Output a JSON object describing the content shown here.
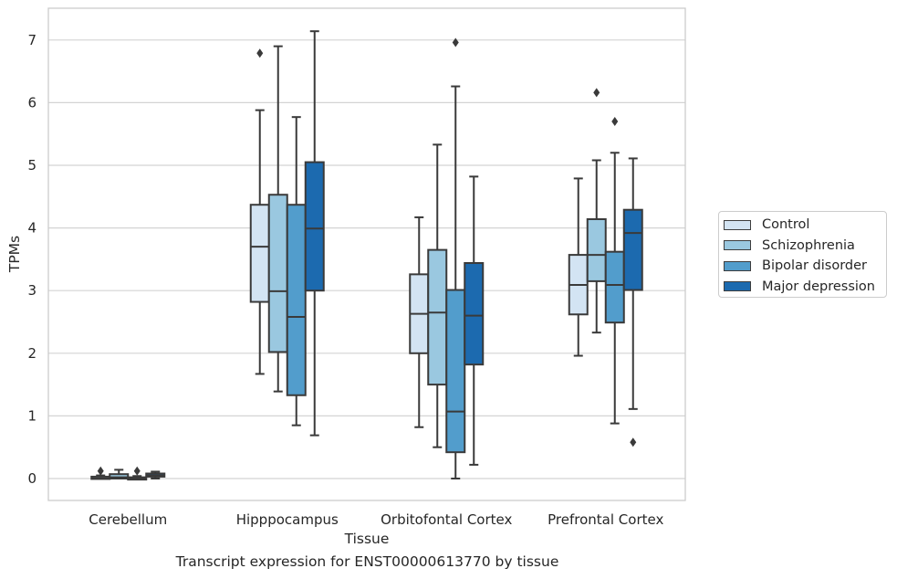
{
  "chart_data": {
    "type": "box",
    "xlabel": "Tissue",
    "ylabel": "TPMs",
    "caption": "Transcript expression for ENST00000613770 by tissue",
    "ylim": [
      -0.3,
      7.5
    ],
    "yticks": [
      "0",
      "1",
      "2",
      "3",
      "4",
      "5",
      "6",
      "7"
    ],
    "grid": "horizontal",
    "legend_position": "right",
    "categories": [
      "Cerebellum",
      "Hipppocampus",
      "Orbitofontal Cortex",
      "Prefrontal Cortex"
    ],
    "series": [
      {
        "name": "Control",
        "color": "#d3e4f3",
        "boxes": [
          {
            "whislo": 0.0,
            "q1": 0.0,
            "med": 0.0,
            "q3": 0.03,
            "whishi": 0.05,
            "fliers": [
              0.12
            ]
          },
          {
            "whislo": 1.67,
            "q1": 2.82,
            "med": 3.7,
            "q3": 4.37,
            "whishi": 5.88,
            "fliers": [
              6.79
            ]
          },
          {
            "whislo": 0.82,
            "q1": 2.0,
            "med": 2.63,
            "q3": 3.26,
            "whishi": 4.17,
            "fliers": []
          },
          {
            "whislo": 1.96,
            "q1": 2.62,
            "med": 3.09,
            "q3": 3.57,
            "whishi": 4.79,
            "fliers": []
          }
        ]
      },
      {
        "name": "Schizophrenia",
        "color": "#9ac8e0",
        "boxes": [
          {
            "whislo": 0.0,
            "q1": 0.0,
            "med": 0.02,
            "q3": 0.07,
            "whishi": 0.14,
            "fliers": []
          },
          {
            "whislo": 1.39,
            "q1": 2.02,
            "med": 2.99,
            "q3": 4.53,
            "whishi": 6.9,
            "fliers": []
          },
          {
            "whislo": 0.5,
            "q1": 1.5,
            "med": 2.65,
            "q3": 3.65,
            "whishi": 5.33,
            "fliers": []
          },
          {
            "whislo": 2.33,
            "q1": 3.15,
            "med": 3.57,
            "q3": 4.14,
            "whishi": 5.08,
            "fliers": [
              6.16
            ]
          }
        ]
      },
      {
        "name": "Bipolar disorder",
        "color": "#529dcc",
        "boxes": [
          {
            "whislo": 0.0,
            "q1": 0.0,
            "med": 0.0,
            "q3": 0.02,
            "whishi": 0.04,
            "fliers": [
              0.12
            ]
          },
          {
            "whislo": 0.85,
            "q1": 1.33,
            "med": 2.58,
            "q3": 4.37,
            "whishi": 5.77,
            "fliers": []
          },
          {
            "whislo": 0.0,
            "q1": 0.42,
            "med": 1.07,
            "q3": 3.01,
            "whishi": 6.26,
            "fliers": [
              6.96
            ]
          },
          {
            "whislo": 0.88,
            "q1": 2.49,
            "med": 3.09,
            "q3": 3.62,
            "whishi": 5.2,
            "fliers": [
              5.7
            ]
          }
        ]
      },
      {
        "name": "Major depression",
        "color": "#1c6aaf",
        "boxes": [
          {
            "whislo": 0.0,
            "q1": 0.03,
            "med": 0.05,
            "q3": 0.08,
            "whishi": 0.11,
            "fliers": []
          },
          {
            "whislo": 0.69,
            "q1": 3.0,
            "med": 3.99,
            "q3": 5.05,
            "whishi": 7.14,
            "fliers": []
          },
          {
            "whislo": 0.22,
            "q1": 1.82,
            "med": 2.6,
            "q3": 3.44,
            "whishi": 4.82,
            "fliers": []
          },
          {
            "whislo": 1.11,
            "q1": 3.01,
            "med": 3.92,
            "q3": 4.29,
            "whishi": 5.11,
            "fliers": [
              0.58
            ]
          }
        ]
      }
    ]
  }
}
